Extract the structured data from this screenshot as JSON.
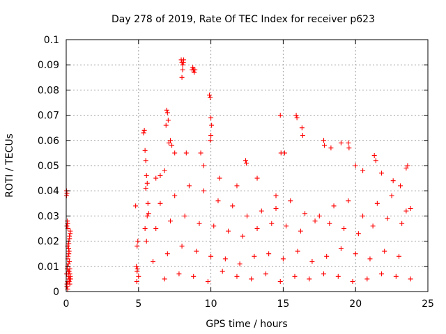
{
  "chart_data": {
    "type": "scatter",
    "title": "Day 278 of 2019, Rate Of TEC Index for receiver p623",
    "xlabel": "GPS time / hours",
    "ylabel": "ROTI / TECUs",
    "xlim": [
      0,
      25
    ],
    "ylim": [
      0,
      0.1
    ],
    "xticks": [
      0,
      5,
      10,
      15,
      20,
      25
    ],
    "xtick_labels": [
      "0",
      "5",
      "10",
      "15",
      "20",
      "25"
    ],
    "yticks": [
      0,
      0.01,
      0.02,
      0.03,
      0.04,
      0.05,
      0.06,
      0.07,
      0.08,
      0.09,
      0.1
    ],
    "ytick_labels": [
      "0",
      "0.01",
      "0.02",
      "0.03",
      "0.04",
      "0.05",
      "0.06",
      "0.07",
      "0.08",
      "0.09",
      "0.1"
    ],
    "grid": true,
    "marker": "+",
    "marker_color": "#ff0000",
    "series": [
      {
        "x": [
          0.02,
          0.05,
          0.08,
          0.1,
          0.12,
          0.15,
          0.18,
          0.2,
          0.22,
          0.25,
          0.28,
          0.3,
          0.05,
          0.1,
          0.15,
          0.2,
          0.25,
          0.08,
          0.12,
          0.18,
          0.22,
          0.28,
          0.05,
          0.1,
          0.15,
          0.2,
          0.25,
          0.03,
          0.07,
          0.13,
          0.17,
          0.23,
          0.27,
          0.05,
          0.1,
          0.2,
          0.15,
          0.02,
          0.25,
          4.8,
          4.85,
          4.9,
          4.95,
          5.0,
          4.88,
          4.92,
          4.9,
          5.35,
          5.4,
          5.45,
          5.5,
          5.55,
          5.6,
          5.65,
          5.7,
          5.5,
          5.6,
          5.45,
          5.55,
          6.2,
          6.5,
          6.8,
          6.95,
          7.0,
          7.05,
          7.1,
          7.3,
          7.5,
          6.9,
          7.2,
          7.95,
          8.0,
          8.05,
          8.1,
          8.12,
          8.0,
          8.05,
          8.7,
          8.75,
          8.8,
          8.85,
          8.9,
          8.8,
          9.9,
          9.95,
          10.0,
          10.05,
          10.0,
          9.95,
          8.3,
          9.5,
          9.3,
          10.6,
          11.8,
          12.4,
          12.45,
          13.2,
          14.5,
          14.8,
          14.85,
          15.1,
          15.9,
          15.95,
          16.3,
          16.35,
          17.8,
          17.85,
          18.3,
          19.0,
          19.5,
          19.55,
          20.0,
          20.5,
          21.3,
          21.4,
          21.8,
          22.6,
          23.1,
          23.5,
          23.6,
          23.8,
          6.5,
          7.5,
          8.5,
          9.5,
          10.5,
          11.5,
          12.5,
          13.5,
          14.5,
          15.5,
          16.5,
          17.5,
          18.5,
          19.5,
          20.5,
          21.5,
          22.5,
          23.5,
          6.2,
          7.2,
          8.2,
          9.2,
          10.2,
          11.2,
          12.2,
          13.2,
          14.2,
          15.2,
          16.2,
          17.2,
          18.2,
          19.2,
          20.2,
          21.2,
          22.2,
          23.2,
          6.0,
          7.0,
          8.0,
          9.0,
          10.0,
          11.0,
          12.0,
          13.0,
          14.0,
          15.0,
          16.0,
          17.0,
          18.0,
          19.0,
          20.0,
          21.0,
          22.0,
          23.0,
          6.8,
          7.8,
          8.8,
          9.8,
          10.8,
          11.8,
          12.8,
          13.8,
          14.8,
          15.8,
          16.8,
          17.8,
          18.8,
          19.8,
          20.8,
          21.8,
          22.8,
          23.8
        ],
        "y": [
          0.04,
          0.039,
          0.028,
          0.027,
          0.025,
          0.02,
          0.019,
          0.016,
          0.012,
          0.009,
          0.006,
          0.005,
          0.003,
          0.004,
          0.006,
          0.008,
          0.007,
          0.01,
          0.013,
          0.015,
          0.022,
          0.024,
          0.026,
          0.018,
          0.011,
          0.005,
          0.003,
          0.007,
          0.009,
          0.014,
          0.017,
          0.021,
          0.023,
          0.002,
          0.001,
          0.004,
          0.008,
          0.038,
          0.005,
          0.034,
          0.01,
          0.018,
          0.02,
          0.006,
          0.004,
          0.009,
          0.008,
          0.063,
          0.064,
          0.056,
          0.052,
          0.046,
          0.043,
          0.035,
          0.031,
          0.041,
          0.03,
          0.025,
          0.02,
          0.045,
          0.046,
          0.048,
          0.072,
          0.071,
          0.068,
          0.059,
          0.058,
          0.055,
          0.066,
          0.06,
          0.092,
          0.091,
          0.09,
          0.091,
          0.092,
          0.085,
          0.088,
          0.088,
          0.089,
          0.088,
          0.087,
          0.088,
          0.088,
          0.078,
          0.077,
          0.069,
          0.066,
          0.062,
          0.06,
          0.055,
          0.05,
          0.055,
          0.045,
          0.042,
          0.052,
          0.051,
          0.045,
          0.038,
          0.07,
          0.055,
          0.055,
          0.07,
          0.069,
          0.065,
          0.062,
          0.06,
          0.058,
          0.057,
          0.059,
          0.059,
          0.057,
          0.05,
          0.048,
          0.054,
          0.052,
          0.047,
          0.044,
          0.042,
          0.049,
          0.05,
          0.033,
          0.035,
          0.038,
          0.042,
          0.04,
          0.036,
          0.034,
          0.03,
          0.032,
          0.033,
          0.036,
          0.031,
          0.03,
          0.034,
          0.036,
          0.03,
          0.035,
          0.038,
          0.032,
          0.025,
          0.028,
          0.03,
          0.027,
          0.026,
          0.024,
          0.022,
          0.025,
          0.027,
          0.026,
          0.024,
          0.028,
          0.027,
          0.025,
          0.023,
          0.026,
          0.029,
          0.027,
          0.012,
          0.015,
          0.018,
          0.016,
          0.014,
          0.013,
          0.011,
          0.014,
          0.015,
          0.013,
          0.016,
          0.012,
          0.014,
          0.017,
          0.015,
          0.013,
          0.016,
          0.014,
          0.005,
          0.007,
          0.006,
          0.004,
          0.008,
          0.006,
          0.005,
          0.007,
          0.004,
          0.006,
          0.005,
          0.007,
          0.006,
          0.004,
          0.005,
          0.007,
          0.006,
          0.005
        ]
      }
    ]
  }
}
